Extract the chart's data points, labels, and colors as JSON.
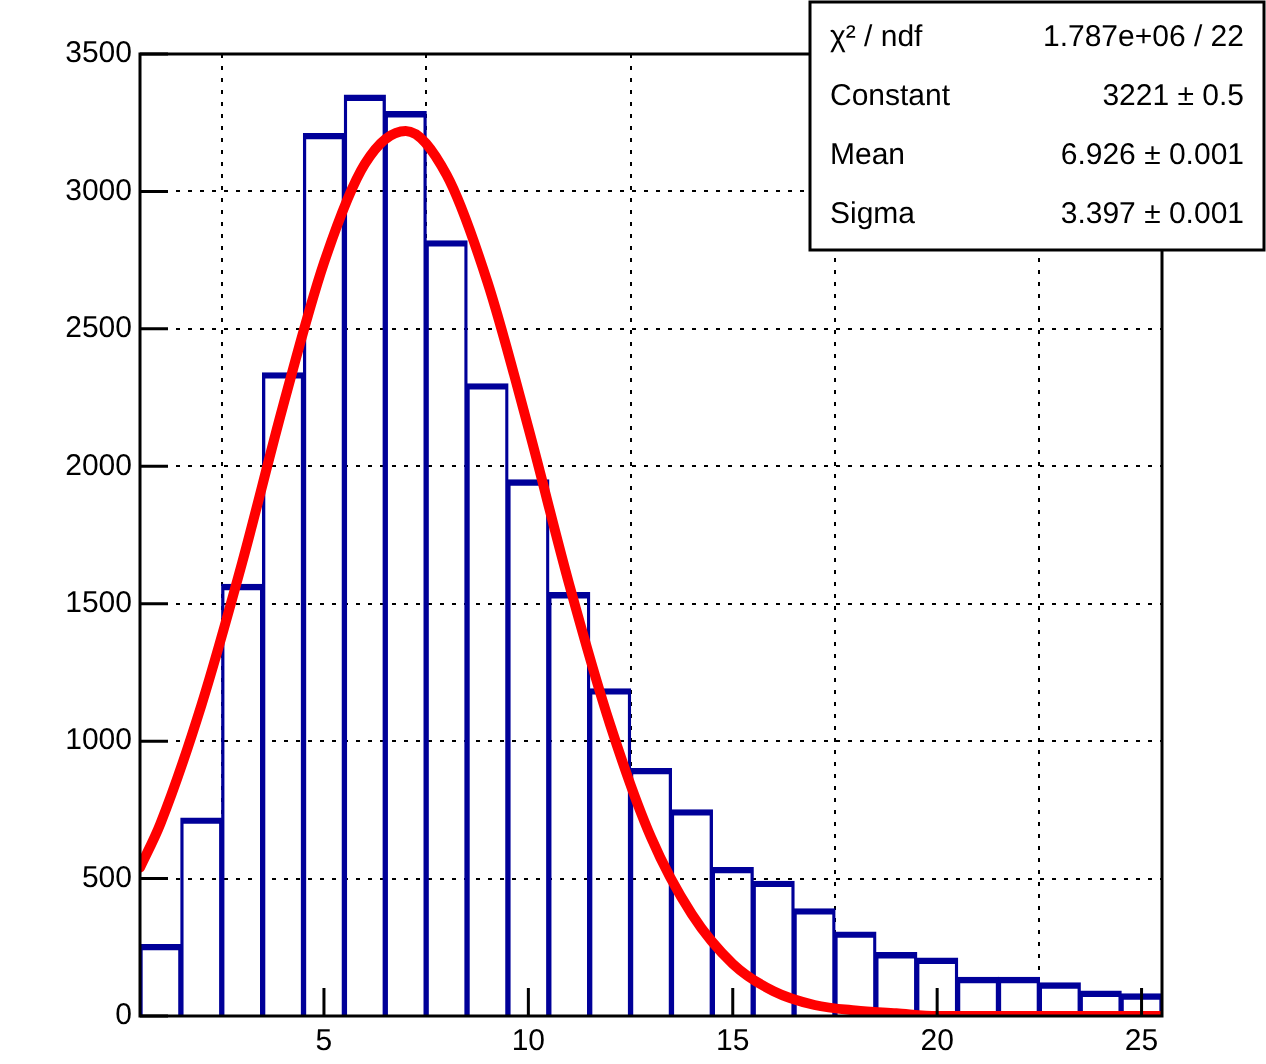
{
  "chart_data": {
    "type": "bar",
    "series": [
      {
        "color": "#000099",
        "x": [
          1,
          2,
          3,
          4,
          5,
          6,
          7,
          8,
          9,
          10,
          11,
          12,
          13,
          14,
          15,
          16,
          17,
          18,
          19,
          20,
          21,
          22,
          23,
          24,
          25
        ],
        "values": [
          260,
          720,
          1570,
          2340,
          3210,
          3350,
          3290,
          2820,
          2300,
          1950,
          1540,
          1190,
          900,
          750,
          540,
          490,
          390,
          305,
          230,
          210,
          140,
          140,
          120,
          90,
          80
        ]
      },
      {
        "type": "line",
        "color": "#ff0000",
        "x": [
          0.5,
          1,
          2,
          3,
          4,
          5,
          6,
          7,
          8,
          9,
          10,
          11,
          12,
          13,
          14,
          15,
          16,
          17,
          18,
          19,
          20,
          21,
          22,
          23,
          24,
          25,
          25.5
        ],
        "values": [
          540,
          700,
          1130,
          1650,
          2220,
          2740,
          3100,
          3220,
          3060,
          2670,
          2140,
          1570,
          1060,
          650,
          370,
          190,
          90,
          40,
          20,
          10,
          0,
          0,
          0,
          0,
          0,
          0,
          0
        ]
      }
    ],
    "xlim": [
      0.5,
      25.5
    ],
    "xticks": [
      5,
      10,
      15,
      20,
      25
    ],
    "ylim": [
      0,
      3500
    ],
    "yticks": [
      0,
      500,
      1000,
      1500,
      2000,
      2500,
      3000,
      3500
    ],
    "grid": true,
    "legend": false,
    "annotations": [
      "χ² / ndf",
      "1.787e+06 / 22",
      "Constant",
      "3221 ± 0.5",
      "Mean",
      "6.926 ± 0.001",
      "Sigma",
      "3.397 ± 0.001"
    ]
  }
}
